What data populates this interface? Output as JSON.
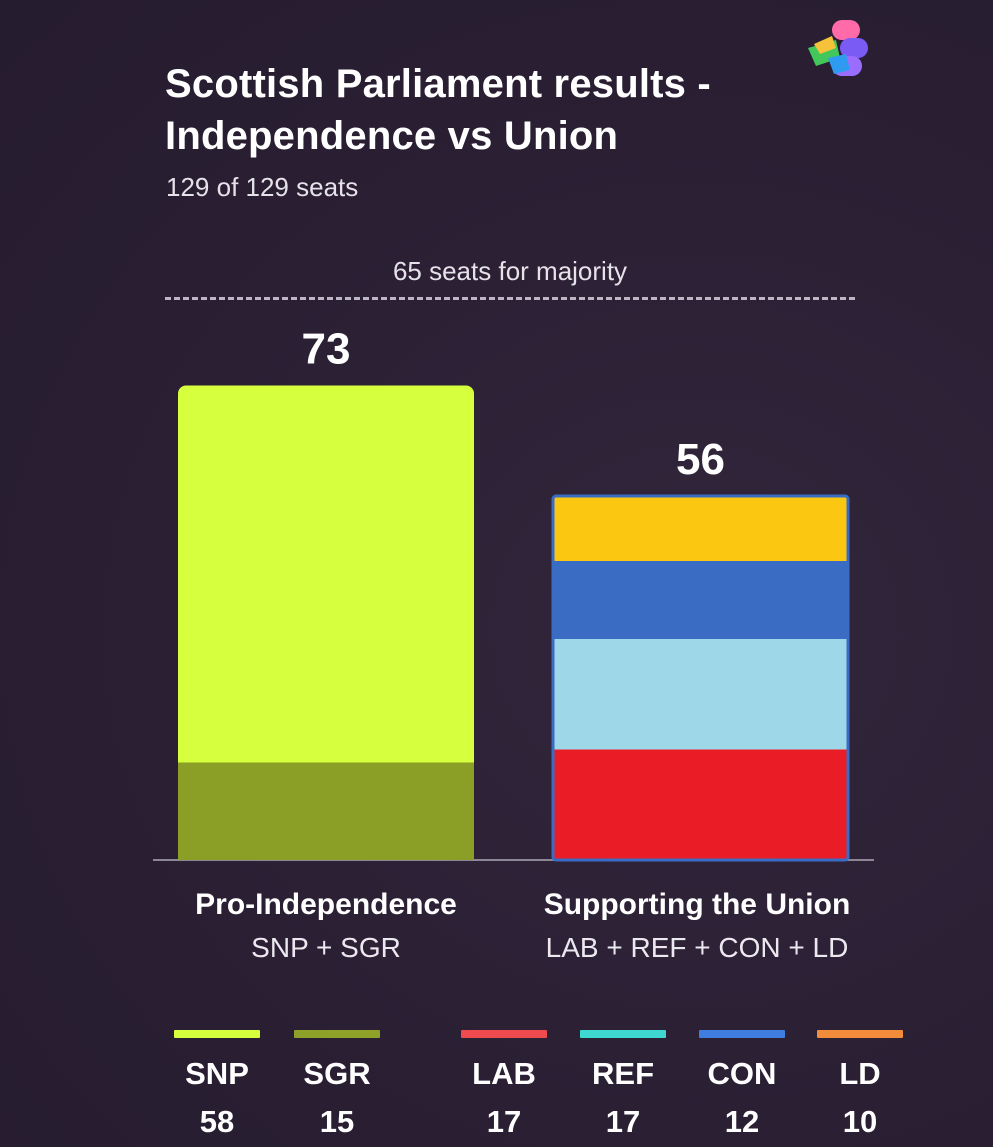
{
  "header": {
    "title": "Scottish Parliament results - Independence vs Union",
    "subtitle": "129 of 129 seats",
    "logo_icon": "multicolor-s-logo-icon"
  },
  "majority": {
    "label": "65 seats for majority",
    "value": 65
  },
  "groups": [
    {
      "name": "Pro-Independence",
      "parties_label": "SNP + SGR",
      "total_label": "73"
    },
    {
      "name": "Supporting the Union",
      "parties_label": "LAB + REF + CON + LD",
      "total_label": "56"
    }
  ],
  "legend": [
    {
      "party": "SNP",
      "seats": "58",
      "color": "#d6ff3d"
    },
    {
      "party": "SGR",
      "seats": "15",
      "color": "#8ea22a"
    },
    {
      "party": "LAB",
      "seats": "17",
      "color": "#ef4a4e"
    },
    {
      "party": "REF",
      "seats": "17",
      "color": "#3fd8d0"
    },
    {
      "party": "CON",
      "seats": "12",
      "color": "#3f7ee0"
    },
    {
      "party": "LD",
      "seats": "10",
      "color": "#f38c3a"
    }
  ],
  "chart_data": {
    "type": "bar",
    "stacked": true,
    "categories": [
      "Pro-Independence",
      "Supporting the Union"
    ],
    "totals": [
      73,
      56
    ],
    "series": [
      {
        "name": "SGR",
        "values": [
          15,
          0
        ],
        "color": "#8b9e26"
      },
      {
        "name": "SNP",
        "values": [
          58,
          0
        ],
        "color": "#d6ff3d"
      },
      {
        "name": "LAB",
        "values": [
          0,
          17
        ],
        "color": "#ea1c26"
      },
      {
        "name": "REF",
        "values": [
          0,
          17
        ],
        "color": "#9ed8e8"
      },
      {
        "name": "CON",
        "values": [
          0,
          12
        ],
        "color": "#3a6cc4"
      },
      {
        "name": "LD",
        "values": [
          0,
          10
        ],
        "color": "#fbc711"
      }
    ],
    "reference_line": {
      "value": 65,
      "label": "65 seats for majority"
    },
    "title": "Scottish Parliament results - Independence vs Union",
    "subtitle": "129 of 129 seats"
  }
}
